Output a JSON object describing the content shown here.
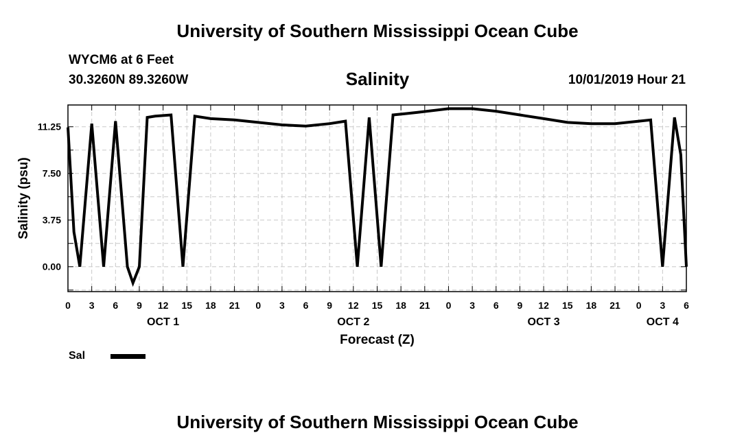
{
  "header": {
    "title": "University of Southern Mississippi Ocean Cube",
    "station": "WYCM6 at 6 Feet",
    "coords": "30.3260N 89.3260W",
    "parameter": "Salinity",
    "timestamp": "10/01/2019 Hour 21"
  },
  "footer": {
    "title": "University of Southern Mississippi Ocean Cube"
  },
  "legend": {
    "label": "Sal",
    "color": "#000000"
  },
  "chart_data": {
    "type": "line",
    "title": "Salinity",
    "xlabel": "Forecast (Z)",
    "ylabel": "Salinity (psu)",
    "x_units": "hours from OCT 1 00Z",
    "xlim": [
      0,
      78
    ],
    "ylim": [
      -2.0,
      13.0
    ],
    "y_ticks": [
      "0.00",
      "3.75",
      "7.50",
      "11.25"
    ],
    "y_tick_values": [
      0,
      3.75,
      7.5,
      11.25
    ],
    "x_tick_labels": [
      "0",
      "3",
      "6",
      "9",
      "12",
      "15",
      "18",
      "21",
      "0",
      "3",
      "6",
      "9",
      "12",
      "15",
      "18",
      "21",
      "0",
      "3",
      "6",
      "9",
      "12",
      "15",
      "18",
      "21",
      "0",
      "3",
      "6"
    ],
    "day_labels": [
      {
        "label": "OCT 1",
        "hour": 12
      },
      {
        "label": "OCT 2",
        "hour": 36
      },
      {
        "label": "OCT 3",
        "hour": 60
      },
      {
        "label": "OCT 4",
        "hour": 75
      }
    ],
    "grid": true,
    "series": [
      {
        "name": "Sal",
        "x": [
          0,
          0.75,
          1.5,
          3,
          4.5,
          6,
          7.5,
          8.2,
          9,
          10,
          11,
          13,
          14.5,
          16,
          18,
          21,
          24,
          27,
          30,
          33,
          35,
          36.5,
          38,
          39.5,
          41,
          42.5,
          44,
          48,
          51,
          54,
          57,
          60,
          63,
          66,
          69,
          72,
          73.5,
          75,
          76.5,
          77.3,
          78
        ],
        "y": [
          11.2,
          2.8,
          0.0,
          11.5,
          0.0,
          11.7,
          0.0,
          -1.3,
          0.0,
          12.0,
          12.1,
          12.2,
          0.0,
          12.1,
          11.9,
          11.8,
          11.6,
          11.4,
          11.3,
          11.5,
          11.7,
          0.0,
          12.0,
          0.0,
          12.2,
          12.3,
          12.4,
          12.7,
          12.7,
          12.5,
          12.2,
          11.9,
          11.6,
          11.5,
          11.5,
          11.7,
          11.8,
          0.0,
          12.0,
          9.0,
          0.0
        ]
      }
    ]
  }
}
